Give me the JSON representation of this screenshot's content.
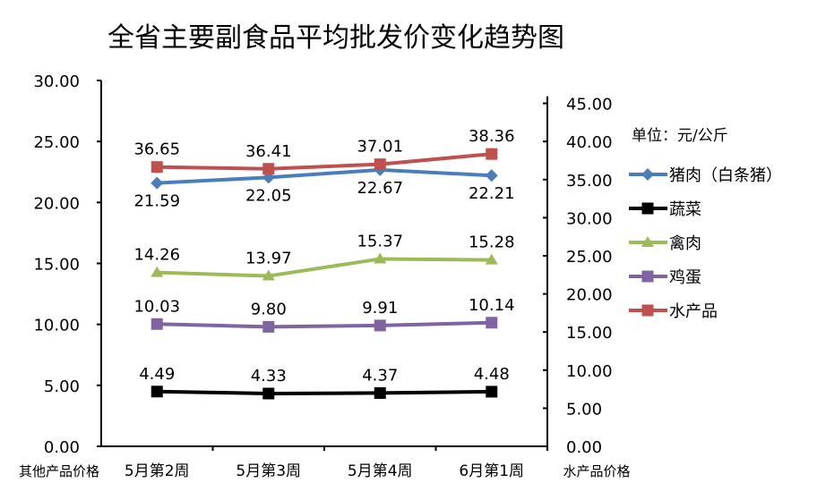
{
  "chart_data": {
    "type": "line",
    "title": "全省主要副食品平均批发价变化趋势图",
    "unit_label": "单位：元/公斤",
    "left_axis": {
      "label": "其他产品价格",
      "ylim": [
        0,
        30
      ],
      "ticks": [
        "0.00",
        "5.00",
        "10.00",
        "15.00",
        "20.00",
        "25.00",
        "30.00"
      ]
    },
    "right_axis": {
      "label": "水产品价格",
      "ylim": [
        0,
        48
      ],
      "ticks": [
        "0.00",
        "5.00",
        "10.00",
        "15.00",
        "20.00",
        "25.00",
        "30.00",
        "35.00",
        "40.00",
        "45.00"
      ]
    },
    "categories": [
      "5月第2周",
      "5月第3周",
      "5月第4周",
      "6月第1周"
    ],
    "series": [
      {
        "name": "猪肉（白条猪）",
        "axis": "left",
        "color": "#4a7ebb",
        "marker": "diamond",
        "values": [
          21.59,
          22.05,
          22.67,
          22.21
        ],
        "labels": [
          "21.59",
          "22.05",
          "22.67",
          "22.21"
        ],
        "label_pos": "below"
      },
      {
        "name": "蔬菜",
        "axis": "left",
        "color": "#000000",
        "marker": "square",
        "values": [
          4.49,
          4.33,
          4.37,
          4.48
        ],
        "labels": [
          "4.49",
          "4.33",
          "4.37",
          "4.48"
        ],
        "label_pos": "above"
      },
      {
        "name": "禽肉",
        "axis": "left",
        "color": "#9bbb59",
        "marker": "triangle",
        "values": [
          14.26,
          13.97,
          15.37,
          15.28
        ],
        "labels": [
          "14.26",
          "13.97",
          "15.37",
          "15.28"
        ],
        "label_pos": "above"
      },
      {
        "name": "鸡蛋",
        "axis": "left",
        "color": "#8064a2",
        "marker": "square",
        "values": [
          10.03,
          9.8,
          9.91,
          10.14
        ],
        "labels": [
          "10.03",
          "9.80",
          "9.91",
          "10.14"
        ],
        "label_pos": "above"
      },
      {
        "name": "水产品",
        "axis": "right",
        "color": "#c0504d",
        "marker": "square",
        "values": [
          36.65,
          36.41,
          37.01,
          38.36
        ],
        "labels": [
          "36.65",
          "36.41",
          "37.01",
          "38.36"
        ],
        "label_pos": "above"
      }
    ],
    "legend": "right",
    "grid": false
  }
}
